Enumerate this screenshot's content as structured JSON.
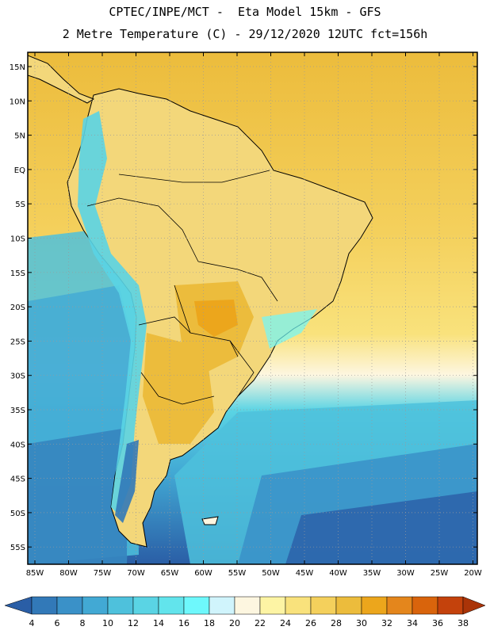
{
  "header": {
    "line1": "CPTEC/INPE/MCT -  Eta Model 15km - GFS",
    "line2": "2 Metre Temperature (C) - 29/12/2020 12UTC fct=156h"
  },
  "map": {
    "lat_labels": [
      "15N",
      "10N",
      "5N",
      "EQ",
      "5S",
      "10S",
      "15S",
      "20S",
      "25S",
      "30S",
      "35S",
      "40S",
      "45S",
      "50S",
      "55S"
    ],
    "lon_labels": [
      "85W",
      "80W",
      "75W",
      "70W",
      "65W",
      "60W",
      "55W",
      "50W",
      "45W",
      "40W",
      "35W",
      "30W",
      "25W",
      "20W"
    ],
    "ocean_color": "#e8c55c",
    "land_color": "#f3d77a"
  },
  "colorbar": {
    "labels": [
      "4",
      "6",
      "8",
      "10",
      "12",
      "14",
      "16",
      "18",
      "20",
      "22",
      "24",
      "26",
      "28",
      "30",
      "32",
      "34",
      "36",
      "38"
    ],
    "colors": [
      "#2a5ea6",
      "#3279b8",
      "#3a91c8",
      "#42a9d4",
      "#4ec1dc",
      "#5ad4e4",
      "#62e4ec",
      "#6ef8fc",
      "#d0f4fc",
      "#fdf6e0",
      "#fdf4a4",
      "#f9e27c",
      "#f4d05c",
      "#ecbc3c",
      "#eca61c",
      "#e4861c",
      "#d9640c",
      "#c4420c",
      "#aa3408"
    ]
  }
}
